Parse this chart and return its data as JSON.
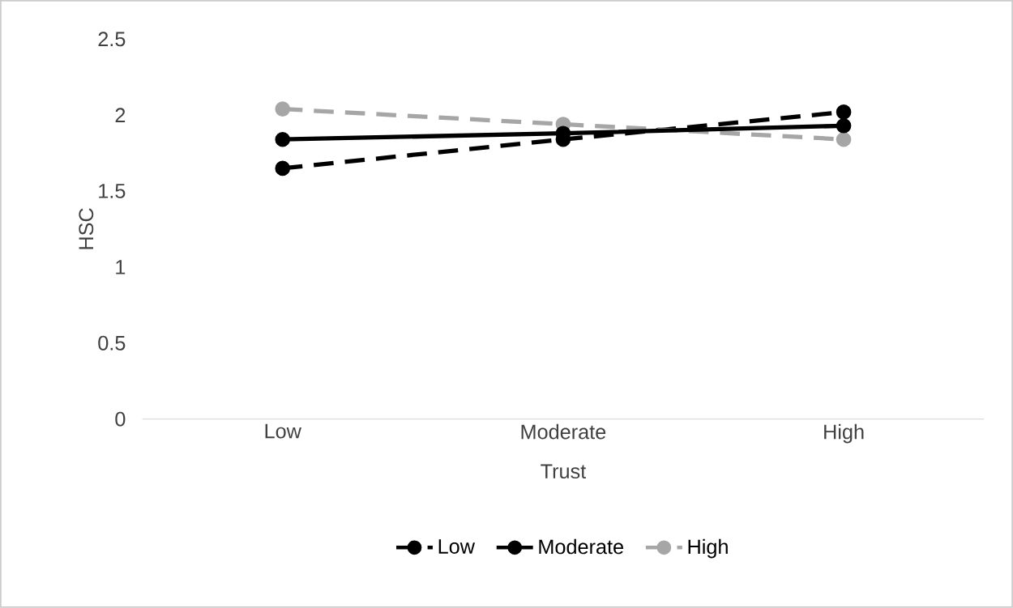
{
  "chart_data": {
    "type": "line",
    "xlabel": "Trust",
    "ylabel": "HSC",
    "categories": [
      "Low",
      "Moderate",
      "High"
    ],
    "series": [
      {
        "name": "Low",
        "color": "#000000",
        "values": [
          1.65,
          1.84,
          2.02
        ],
        "line_style": "dashed"
      },
      {
        "name": "Moderate",
        "color": "#000000",
        "values": [
          1.84,
          1.88,
          1.93
        ],
        "line_style": "solid"
      },
      {
        "name": "High",
        "color": "#a6a6a6",
        "values": [
          2.04,
          1.94,
          1.84
        ],
        "line_style": "dashed"
      }
    ],
    "ylim": [
      0,
      2.5
    ],
    "yticks": [
      0,
      0.5,
      1,
      1.5,
      2,
      2.5
    ],
    "legend": "bottom",
    "marker": "circle"
  }
}
